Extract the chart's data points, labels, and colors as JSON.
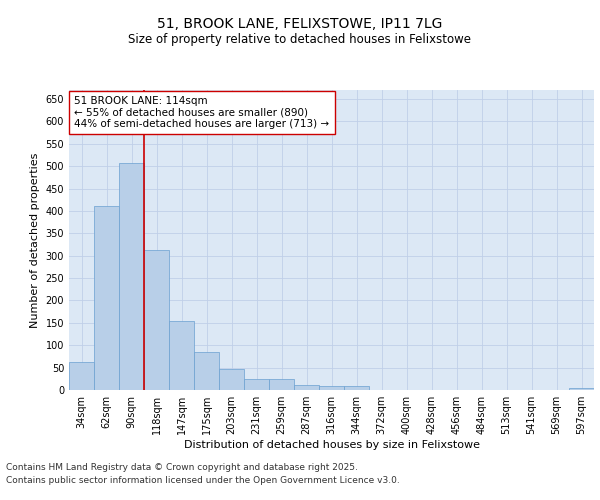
{
  "title1": "51, BROOK LANE, FELIXSTOWE, IP11 7LG",
  "title2": "Size of property relative to detached houses in Felixstowe",
  "xlabel": "Distribution of detached houses by size in Felixstowe",
  "ylabel": "Number of detached properties",
  "categories": [
    "34sqm",
    "62sqm",
    "90sqm",
    "118sqm",
    "147sqm",
    "175sqm",
    "203sqm",
    "231sqm",
    "259sqm",
    "287sqm",
    "316sqm",
    "344sqm",
    "372sqm",
    "400sqm",
    "428sqm",
    "456sqm",
    "484sqm",
    "513sqm",
    "541sqm",
    "569sqm",
    "597sqm"
  ],
  "values": [
    62,
    412,
    507,
    313,
    155,
    84,
    46,
    25,
    25,
    11,
    8,
    8,
    0,
    0,
    0,
    0,
    0,
    0,
    0,
    0,
    5
  ],
  "bar_color": "#b8cfe8",
  "bar_edge_color": "#6aa0d0",
  "vline_color": "#cc0000",
  "vline_x": 2.5,
  "annotation_text": "51 BROOK LANE: 114sqm\n← 55% of detached houses are smaller (890)\n44% of semi-detached houses are larger (713) →",
  "annotation_box_color": "#ffffff",
  "annotation_border_color": "#cc0000",
  "grid_color": "#c0cfe8",
  "plot_bg_color": "#dce8f5",
  "ylim": [
    0,
    670
  ],
  "yticks": [
    0,
    50,
    100,
    150,
    200,
    250,
    300,
    350,
    400,
    450,
    500,
    550,
    600,
    650
  ],
  "title_fontsize": 10,
  "subtitle_fontsize": 8.5,
  "axis_label_fontsize": 8,
  "tick_fontsize": 7,
  "annotation_fontsize": 7.5,
  "footer_fontsize": 6.5
}
